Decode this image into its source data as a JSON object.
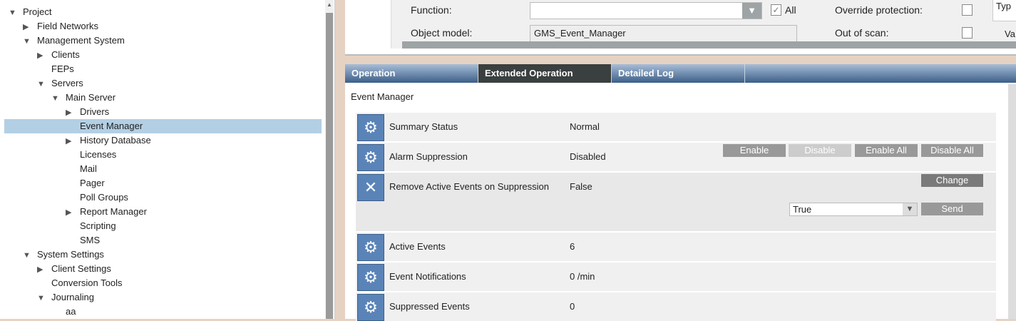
{
  "tree": [
    {
      "label": "Project",
      "level": 0,
      "exp": "open"
    },
    {
      "label": "Field Networks",
      "level": 1,
      "exp": "closed"
    },
    {
      "label": "Management System",
      "level": 1,
      "exp": "open"
    },
    {
      "label": "Clients",
      "level": 2,
      "exp": "closed"
    },
    {
      "label": "FEPs",
      "level": 2,
      "exp": "none"
    },
    {
      "label": "Servers",
      "level": 2,
      "exp": "open"
    },
    {
      "label": "Main Server",
      "level": 3,
      "exp": "open"
    },
    {
      "label": "Drivers",
      "level": 4,
      "exp": "closed"
    },
    {
      "label": "Event Manager",
      "level": 4,
      "exp": "none",
      "selected": true
    },
    {
      "label": "History Database",
      "level": 4,
      "exp": "closed"
    },
    {
      "label": "Licenses",
      "level": 4,
      "exp": "none"
    },
    {
      "label": "Mail",
      "level": 4,
      "exp": "none"
    },
    {
      "label": "Pager",
      "level": 4,
      "exp": "none"
    },
    {
      "label": "Poll Groups",
      "level": 4,
      "exp": "none"
    },
    {
      "label": "Report Manager",
      "level": 4,
      "exp": "closed"
    },
    {
      "label": "Scripting",
      "level": 4,
      "exp": "none"
    },
    {
      "label": "SMS",
      "level": 4,
      "exp": "none"
    },
    {
      "label": "System Settings",
      "level": 1,
      "exp": "open"
    },
    {
      "label": "Client Settings",
      "level": 2,
      "exp": "closed"
    },
    {
      "label": "Conversion Tools",
      "level": 2,
      "exp": "none"
    },
    {
      "label": "Journaling",
      "level": 2,
      "exp": "open"
    },
    {
      "label": "aa",
      "level": 3,
      "exp": "none"
    }
  ],
  "props": {
    "function_label": "Function:",
    "function_value": "",
    "all_label": "All",
    "all_checked": true,
    "object_model_label": "Object model:",
    "object_model_value": "GMS_Event_Manager",
    "override_label": "Override protection:",
    "out_of_scan_label": "Out of scan:",
    "type_label": "Typ",
    "va_label": "Va"
  },
  "tabs": [
    "Operation",
    "Extended Operation",
    "Detailed Log"
  ],
  "active_tab": "Extended Operation",
  "panel_title": "Event Manager",
  "rows": [
    {
      "label": "Summary Status",
      "value": "Normal",
      "icon": "gears-icon"
    },
    {
      "label": "Alarm Suppression",
      "value": "Disabled",
      "icon": "gears-icon"
    },
    {
      "label": "Remove Active Events on Suppression",
      "value": "False",
      "icon": "close-icon"
    },
    {
      "label": "Active Events",
      "value": "6",
      "icon": "gears-icon"
    },
    {
      "label": "Event Notifications",
      "value": "0 /min",
      "icon": "gears-icon"
    },
    {
      "label": "Suppressed Events",
      "value": "0",
      "icon": "gears-icon"
    }
  ],
  "buttons": {
    "enable": "Enable",
    "disable": "Disable",
    "enable_all": "Enable All",
    "disable_all": "Disable All",
    "change": "Change",
    "send": "Send"
  },
  "select_value": "True"
}
